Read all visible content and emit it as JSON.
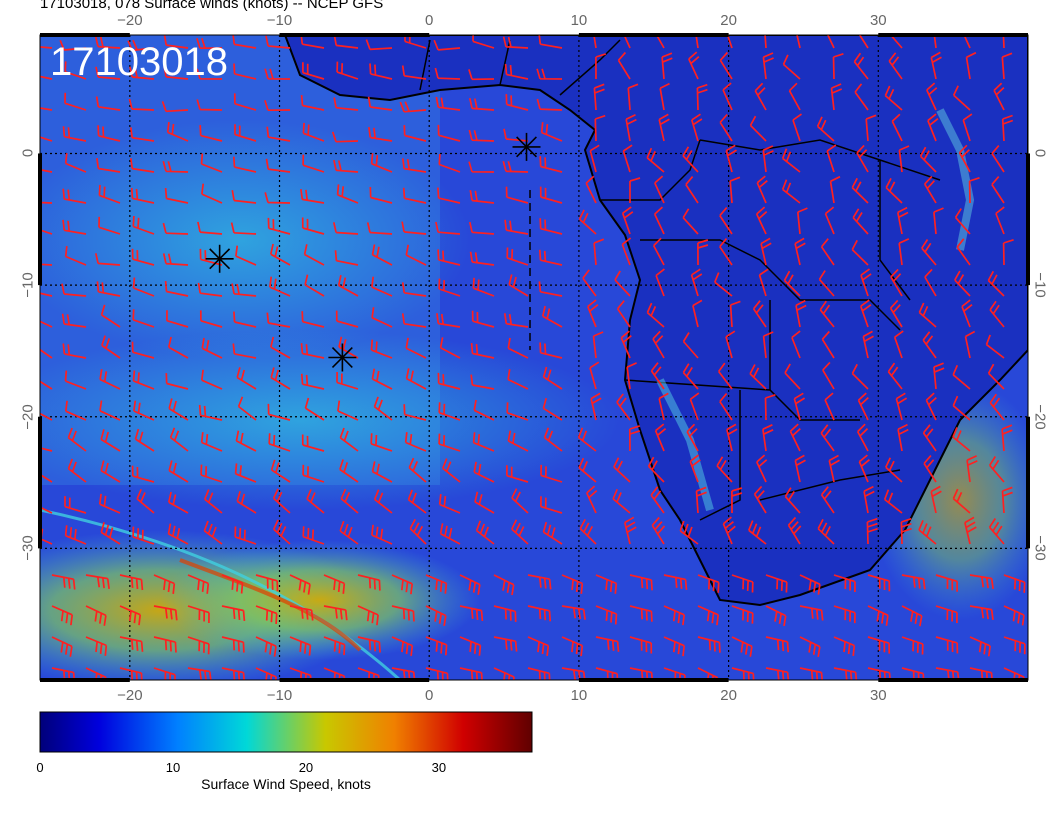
{
  "header": {
    "title": "17103018, 078 Surface winds (knots) -- NCEP GFS",
    "timestamp": "17103018"
  },
  "map": {
    "lon_range": [
      -26,
      40
    ],
    "lat_range": [
      -40,
      9
    ],
    "lon_ticks": [
      {
        "value": -20,
        "label": "−20"
      },
      {
        "value": -10,
        "label": "−10"
      },
      {
        "value": 0,
        "label": "0"
      },
      {
        "value": 10,
        "label": "10"
      },
      {
        "value": 20,
        "label": "20"
      },
      {
        "value": 30,
        "label": "30"
      }
    ],
    "lat_ticks": [
      {
        "value": 0,
        "label": "0"
      },
      {
        "value": -10,
        "label": "−10"
      },
      {
        "value": -20,
        "label": "−20"
      },
      {
        "value": -30,
        "label": "−30"
      }
    ],
    "markers": [
      {
        "name": "marker-1",
        "lat": 0.5,
        "lon": 6.5
      },
      {
        "name": "marker-2",
        "lat": -8,
        "lon": -14
      },
      {
        "name": "marker-3",
        "lat": -15.5,
        "lon": -5.8
      }
    ],
    "colors": {
      "ocean_base": "#2040d0",
      "land_base": "#1428b8",
      "barb": "#ff2020",
      "coast": "#000000"
    }
  },
  "colorbar": {
    "title": "Surface Wind Speed, knots",
    "range": [
      0,
      37
    ],
    "tick_labels": [
      {
        "value": 0,
        "label": "0"
      },
      {
        "value": 10,
        "label": "10"
      },
      {
        "value": 20,
        "label": "20"
      },
      {
        "value": 30,
        "label": "30"
      }
    ]
  }
}
